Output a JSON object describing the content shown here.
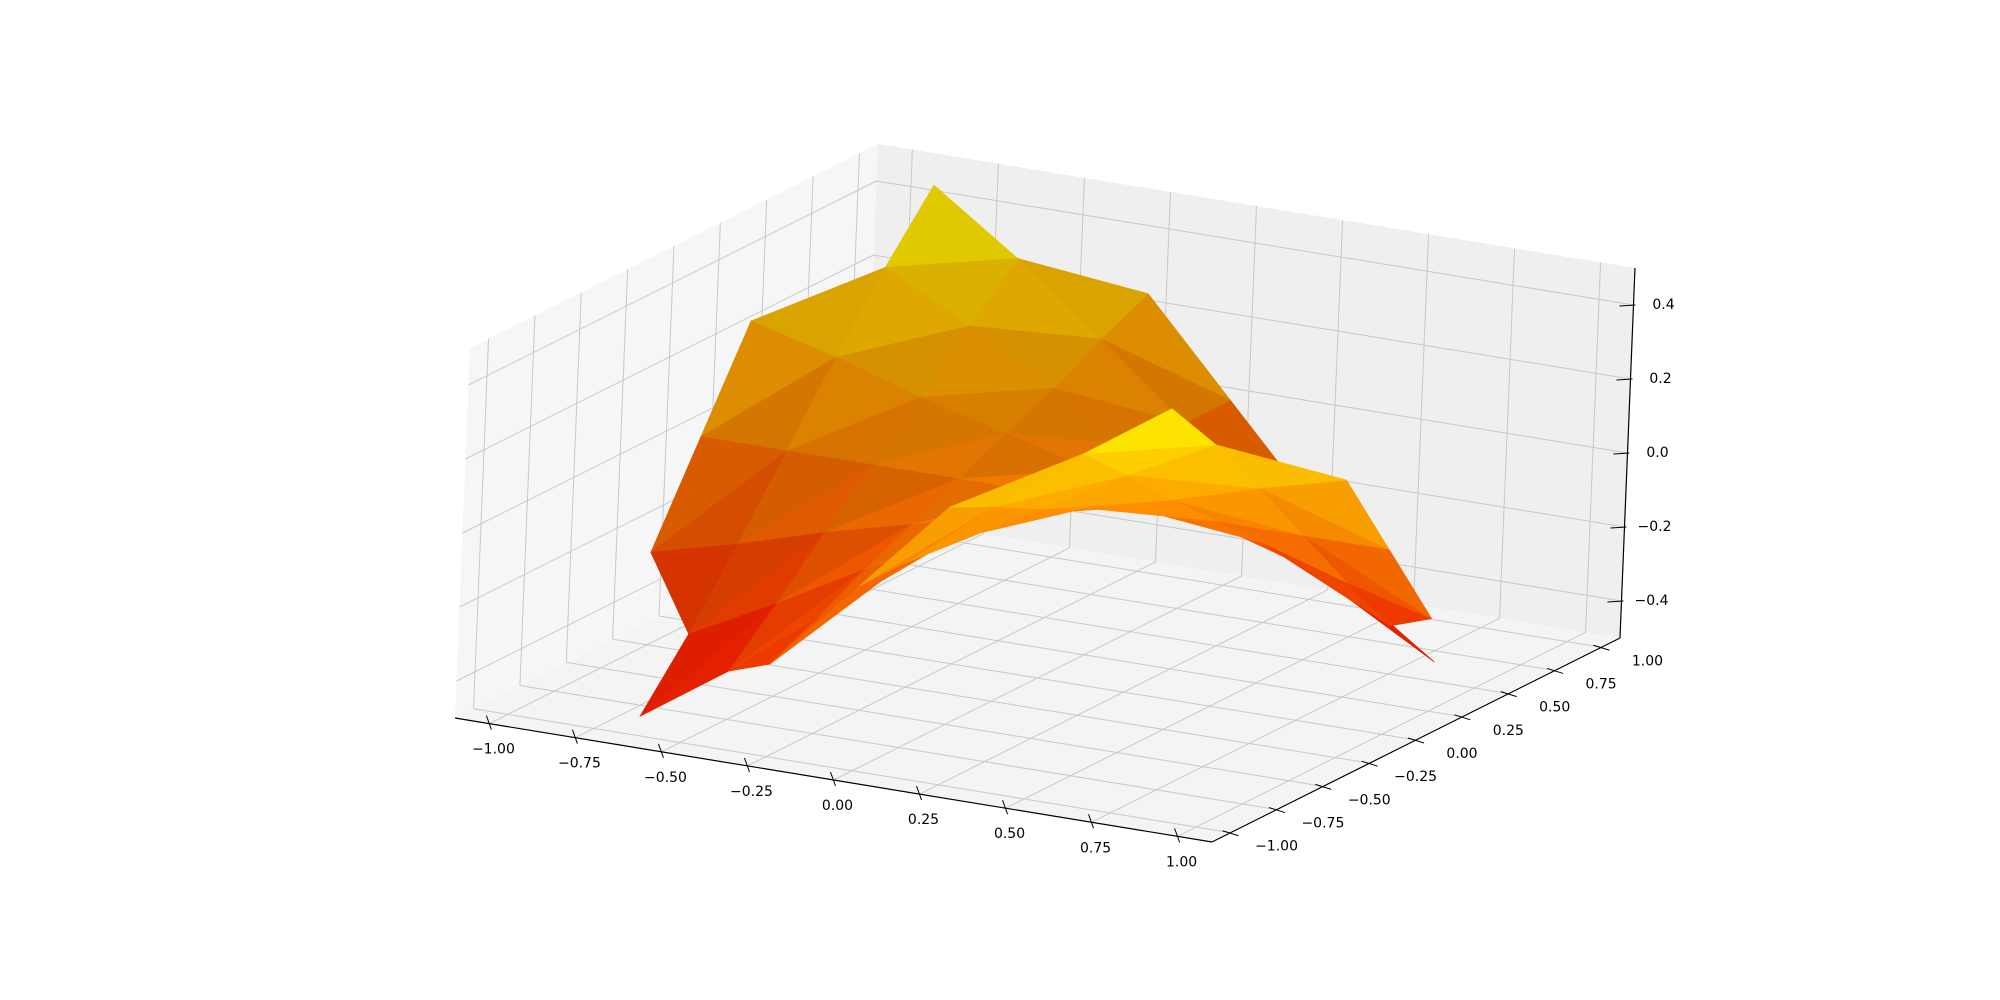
{
  "chart_data": {
    "type": "surface3d",
    "x": [
      -1,
      -0.75,
      -0.5,
      -0.25,
      0,
      0.25,
      0.5,
      0.75,
      1
    ],
    "y": [
      -1,
      -0.75,
      -0.5,
      -0.25,
      0,
      0.25,
      0.5,
      0.75,
      1
    ],
    "z": [
      [
        null,
        null,
        null,
        -0.25,
        0,
        0.25,
        null,
        null,
        null
      ],
      [
        null,
        -0.53,
        -0.37,
        -0.19,
        0,
        0.19,
        0.37,
        0.53,
        null
      ],
      [
        null,
        -0.37,
        -0.25,
        -0.12,
        0,
        0.12,
        0.25,
        0.37,
        null
      ],
      [
        -0.25,
        -0.19,
        -0.12,
        -0.06,
        0,
        0.06,
        0.12,
        0.19,
        0.25
      ],
      [
        0,
        0,
        0,
        0,
        0,
        0,
        0,
        0,
        0
      ],
      [
        0.25,
        0.19,
        0.12,
        0.06,
        0,
        -0.06,
        -0.12,
        -0.19,
        -0.25
      ],
      [
        null,
        0.37,
        0.25,
        0.12,
        0,
        -0.12,
        -0.25,
        -0.37,
        null
      ],
      [
        null,
        0.53,
        0.37,
        0.19,
        0,
        -0.19,
        -0.37,
        -0.53,
        null
      ],
      [
        null,
        null,
        null,
        0.25,
        0,
        -0.25,
        null,
        null,
        null
      ]
    ],
    "colormap": [
      "#ff0000",
      "#ffff00"
    ],
    "xlim": [
      -1.1,
      1.1
    ],
    "ylim": [
      -1.1,
      1.1
    ],
    "zlim": [
      -0.5,
      0.5
    ],
    "xticks": [
      {
        "value": -1,
        "label": "−1.00"
      },
      {
        "value": -0.75,
        "label": "−0.75"
      },
      {
        "value": -0.5,
        "label": "−0.50"
      },
      {
        "value": -0.25,
        "label": "−0.25"
      },
      {
        "value": 0,
        "label": "0.00"
      },
      {
        "value": 0.25,
        "label": "0.25"
      },
      {
        "value": 0.5,
        "label": "0.50"
      },
      {
        "value": 0.75,
        "label": "0.75"
      },
      {
        "value": 1,
        "label": "1.00"
      }
    ],
    "yticks": [
      {
        "value": -1,
        "label": "−1.00"
      },
      {
        "value": -0.75,
        "label": "−0.75"
      },
      {
        "value": -0.5,
        "label": "−0.50"
      },
      {
        "value": -0.25,
        "label": "−0.25"
      },
      {
        "value": 0,
        "label": "0.00"
      },
      {
        "value": 0.25,
        "label": "0.25"
      },
      {
        "value": 0.5,
        "label": "0.50"
      },
      {
        "value": 0.75,
        "label": "0.75"
      },
      {
        "value": 1,
        "label": "1.00"
      }
    ],
    "zticks": [
      {
        "value": -0.4,
        "label": "−0.4"
      },
      {
        "value": -0.2,
        "label": "−0.2"
      },
      {
        "value": 0,
        "label": "0.0"
      },
      {
        "value": 0.2,
        "label": "0.2"
      },
      {
        "value": 0.4,
        "label": "0.4"
      }
    ],
    "grid": true
  }
}
